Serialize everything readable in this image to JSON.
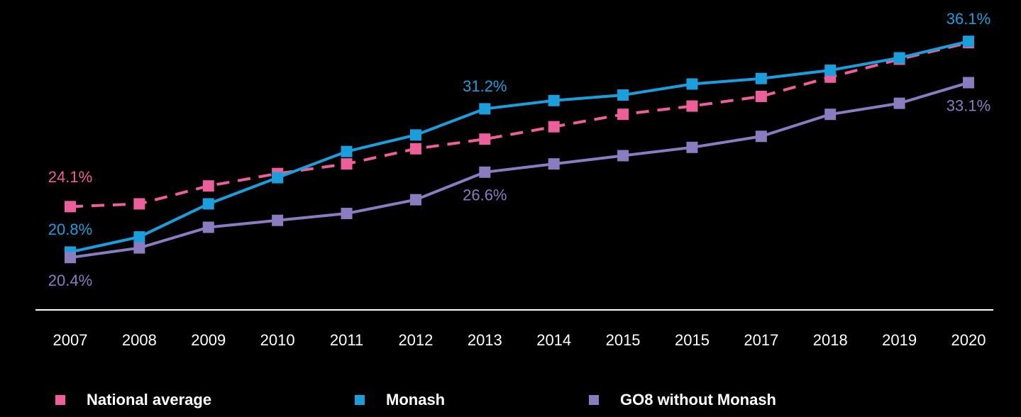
{
  "chart_data": {
    "type": "line",
    "categories": [
      "2007",
      "2008",
      "2009",
      "2010",
      "2011",
      "2012",
      "2013",
      "2014",
      "2015",
      "2015",
      "2017",
      "2018",
      "2019",
      "2020"
    ],
    "series": [
      {
        "name": "National average",
        "color": "#ec5f9a",
        "dash": true,
        "values": [
          24.1,
          24.3,
          25.6,
          26.5,
          27.2,
          28.3,
          29.0,
          29.9,
          30.8,
          31.4,
          32.1,
          33.5,
          34.8,
          36.0
        ],
        "value_labels": [
          "24.1%",
          null,
          null,
          null,
          null,
          null,
          null,
          null,
          null,
          null,
          null,
          null,
          null,
          null
        ]
      },
      {
        "name": "Monash",
        "color": "#1a9fdc",
        "dash": false,
        "values": [
          20.8,
          21.9,
          24.3,
          26.2,
          28.1,
          29.3,
          31.2,
          31.8,
          32.2,
          33.0,
          33.4,
          34.0,
          34.9,
          36.1
        ],
        "value_labels": [
          "20.8%",
          null,
          null,
          null,
          null,
          null,
          "31.2%",
          null,
          null,
          null,
          null,
          null,
          null,
          "36.1%"
        ]
      },
      {
        "name": "GO8 without Monash",
        "color": "#8a7cbf",
        "dash": false,
        "values": [
          20.4,
          21.1,
          22.6,
          23.1,
          23.6,
          24.6,
          26.6,
          27.2,
          27.8,
          28.4,
          29.2,
          30.8,
          31.6,
          33.1
        ],
        "value_labels": [
          "20.4%",
          null,
          null,
          null,
          null,
          null,
          "26.6%",
          null,
          null,
          null,
          null,
          null,
          null,
          "33.1%"
        ]
      }
    ],
    "ylim": [
      16.6,
      39.1
    ]
  }
}
